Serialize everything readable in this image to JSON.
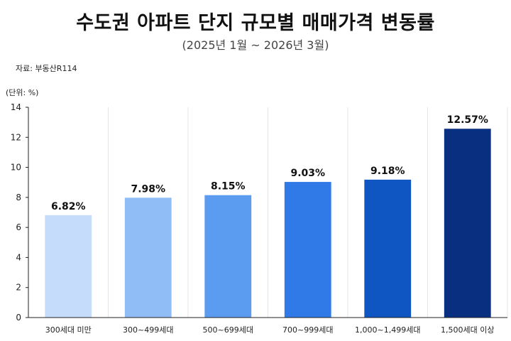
{
  "chart_data": {
    "type": "bar",
    "title": "수도권 아파트 단지 규모별 매매가격 변동률",
    "subtitle": "(2025년 1월 ~ 2026년 3월)",
    "source": "자료:  부동산R114",
    "unit": "(단위: %)",
    "categories": [
      "300세대 미만",
      "300~499세대",
      "500~699세대",
      "700~999세대",
      "1,000~1,499세대",
      "1,500세대 이상"
    ],
    "values": [
      6.82,
      7.98,
      8.15,
      9.03,
      9.18,
      12.57
    ],
    "value_labels": [
      "6.82%",
      "7.98%",
      "8.15%",
      "9.03%",
      "9.18%",
      "12.57%"
    ],
    "colors": [
      "#c5dcfb",
      "#90bdf6",
      "#5b9cf0",
      "#2f7ae6",
      "#0f56c2",
      "#093080"
    ],
    "ylim": [
      0,
      14
    ],
    "yticks": [
      0,
      2,
      4,
      6,
      8,
      10,
      12,
      14
    ],
    "grid": "vertical"
  }
}
